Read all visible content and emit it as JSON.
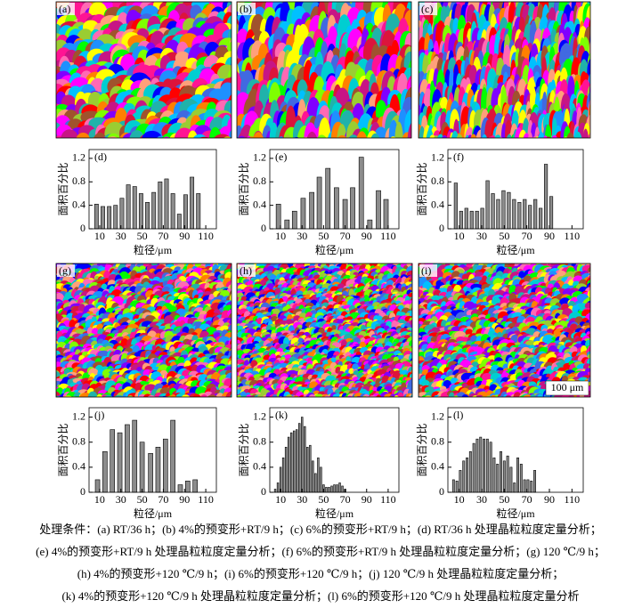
{
  "maps": [
    {
      "label": "(a)"
    },
    {
      "label": "(b)"
    },
    {
      "label": "(c)"
    },
    {
      "label": "(g)"
    },
    {
      "label": "(h)"
    },
    {
      "label": "(i)"
    }
  ],
  "scale_bar": "100 μm",
  "caption": [
    "处理条件：(a) RT/36 h；(b) 4%的预变形+RT/9 h；(c) 6%的预变形+RT/9 h；(d) RT/36 h 处理晶粒粒度定量分析；",
    "(e) 4%的预变形+RT/9 h 处理晶粒粒度定量分析；(f) 6%的预变形+RT/9 h 处理晶粒粒度定量分析；(g) 120 ℃/9 h；",
    "(h) 4%的预变形+120 ℃/9 h；(i) 6%的预变形+120 ℃/9 h；(j) 120 ℃/9 h 处理晶粒粒度定量分析；",
    "(k) 4%的预变形+120 ℃/9 h 处理晶粒粒度定量分析；(l) 6%的预变形+120 ℃/9 h 处理晶粒粒度定量分析"
  ],
  "chart_data": [
    {
      "type": "bar",
      "label": "(d)",
      "ylabel": "面积百分比",
      "xlabel": "粒径/μm",
      "color": "#8c8c8c",
      "xlim": [
        0,
        120
      ],
      "ylim": [
        0,
        1.35
      ],
      "xticks": [
        10,
        30,
        50,
        70,
        90,
        110
      ],
      "yticks": [
        0,
        0.4,
        0.8,
        1.2
      ],
      "x": [
        7,
        13,
        19,
        25,
        31,
        37,
        43,
        49,
        55,
        61,
        67,
        73,
        79,
        85,
        91,
        97,
        103
      ],
      "values": [
        0.42,
        0.38,
        0.38,
        0.4,
        0.52,
        0.75,
        0.72,
        0.6,
        0.45,
        0.62,
        0.8,
        0.85,
        0.6,
        0.25,
        0.58,
        0.88,
        0.6
      ]
    },
    {
      "type": "bar",
      "label": "(e)",
      "ylabel": "面积百分比",
      "xlabel": "粒径/μm",
      "color": "#8c8c8c",
      "xlim": [
        0,
        120
      ],
      "ylim": [
        0,
        1.35
      ],
      "xticks": [
        10,
        30,
        50,
        70,
        90,
        110
      ],
      "yticks": [
        0,
        0.4,
        0.8,
        1.2
      ],
      "x": [
        8,
        16,
        23,
        31,
        39,
        46,
        54,
        62,
        70,
        77,
        85,
        93,
        101,
        108
      ],
      "values": [
        0.42,
        0.15,
        0.3,
        0.52,
        0.62,
        0.88,
        1.03,
        0.7,
        0.5,
        0.7,
        1.22,
        0.15,
        0.65,
        0.5
      ]
    },
    {
      "type": "bar",
      "label": "(f)",
      "ylabel": "面积百分比",
      "xlabel": "粒径/μm",
      "color": "#8c8c8c",
      "xlim": [
        0,
        120
      ],
      "ylim": [
        0,
        1.35
      ],
      "xticks": [
        10,
        30,
        50,
        70,
        90,
        110
      ],
      "yticks": [
        0,
        0.4,
        0.8,
        1.2
      ],
      "x": [
        7,
        11.7,
        16.4,
        21.1,
        25.8,
        30.5,
        35.2,
        39.9,
        44.6,
        49.3,
        54,
        58.7,
        63.4,
        68.1,
        72.8,
        77.5,
        82.2,
        86.9,
        91.6
      ],
      "values": [
        0.78,
        0.3,
        0.35,
        0.3,
        0.3,
        0.35,
        0.82,
        0.6,
        0.5,
        0.65,
        0.62,
        0.5,
        0.45,
        0.5,
        0.4,
        0.5,
        0.35,
        1.1,
        0.55
      ]
    },
    {
      "type": "bar",
      "label": "(j)",
      "ylabel": "面积百分比",
      "xlabel": "粒径/μm",
      "color": "#8c8c8c",
      "xlim": [
        0,
        120
      ],
      "ylim": [
        0,
        1.35
      ],
      "xticks": [
        10,
        30,
        50,
        70,
        90,
        110
      ],
      "yticks": [
        0,
        0.4,
        0.8,
        1.2
      ],
      "x": [
        8,
        15,
        22,
        29,
        36,
        43,
        50,
        58,
        65,
        72,
        79,
        86,
        93,
        100
      ],
      "values": [
        0.2,
        0.65,
        1.0,
        0.95,
        1.08,
        1.15,
        0.8,
        0.62,
        0.72,
        0.85,
        1.15,
        0.12,
        0.18,
        0.2
      ]
    },
    {
      "type": "bar",
      "label": "(k)",
      "ylabel": "面积百分比",
      "xlabel": "粒径/μm",
      "color": "#8c8c8c",
      "xlim": [
        0,
        120
      ],
      "ylim": [
        0,
        1.35
      ],
      "xticks": [
        10,
        30,
        50,
        70,
        90,
        110
      ],
      "yticks": [
        0,
        0.4,
        0.8,
        1.2
      ],
      "x": [
        5,
        7.5,
        10,
        12.5,
        15,
        17.5,
        20,
        22.5,
        25,
        27.5,
        30,
        32.5,
        35,
        37.5,
        40,
        42.5,
        45,
        47.5,
        50,
        52.5,
        55,
        57.5,
        60,
        62.5,
        65,
        67.5,
        70
      ],
      "values": [
        0.05,
        0.15,
        0.4,
        0.55,
        0.72,
        0.88,
        0.95,
        0.98,
        1.0,
        1.1,
        1.2,
        1.05,
        0.72,
        0.75,
        0.5,
        0.3,
        0.55,
        0.4,
        0.12,
        0.08,
        0.08,
        0.1,
        0.12,
        0.12,
        0.15,
        0.1,
        0.05
      ]
    },
    {
      "type": "bar",
      "label": "(l)",
      "ylabel": "面积百分比",
      "xlabel": "粒径/μm",
      "color": "#8c8c8c",
      "xlim": [
        0,
        120
      ],
      "ylim": [
        0,
        1.35
      ],
      "xticks": [
        10,
        30,
        50,
        70,
        90,
        110
      ],
      "yticks": [
        0,
        0.4,
        0.8,
        1.2
      ],
      "x": [
        5,
        8,
        11,
        14,
        17,
        20,
        23,
        26,
        29,
        32,
        35,
        38,
        41,
        44,
        47,
        50,
        53,
        56,
        59,
        62,
        65,
        68,
        71,
        74,
        77
      ],
      "values": [
        0.2,
        0.18,
        0.35,
        0.5,
        0.55,
        0.65,
        0.78,
        0.85,
        0.88,
        0.85,
        0.85,
        0.8,
        0.55,
        0.45,
        0.65,
        0.5,
        0.58,
        0.4,
        0.15,
        0.55,
        0.45,
        0.2,
        0.2,
        0.18,
        0.35
      ]
    }
  ]
}
